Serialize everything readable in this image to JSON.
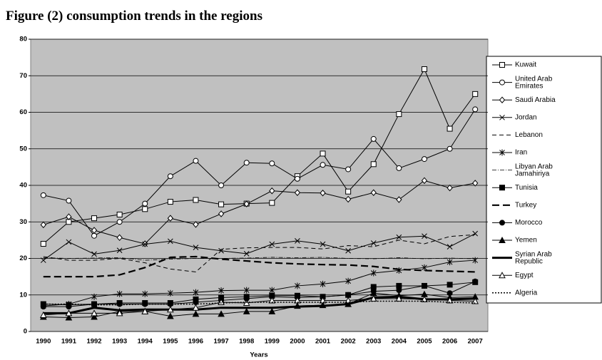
{
  "chart_data": {
    "type": "line",
    "title": "Figure (2) consumption trends in the regions",
    "xlabel": "Years",
    "categories": [
      "1990",
      "1991",
      "1992",
      "1993",
      "1994",
      "1995",
      "1996",
      "1997",
      "1998",
      "1999",
      "2000",
      "2001",
      "2002",
      "2003",
      "2004",
      "2005",
      "2006",
      "2007"
    ],
    "ylim": [
      0,
      80
    ],
    "yticks": [
      0,
      10,
      20,
      30,
      40,
      50,
      60,
      70,
      80
    ],
    "grid": true,
    "series": [
      {
        "name": "Kuwait",
        "color": "#000000",
        "marker": "square-open",
        "dash": "none",
        "width": 1,
        "values": [
          24,
          30,
          31,
          32,
          33.5,
          35.5,
          36,
          34.8,
          35,
          35.2,
          42.5,
          48.7,
          38.3,
          45.8,
          59.5,
          71.8,
          55.5,
          65
        ]
      },
      {
        "name": "United Arab Emirates",
        "color": "#000000",
        "marker": "circle-open",
        "dash": "none",
        "width": 1,
        "values": [
          37.3,
          35.8,
          26.2,
          30,
          35,
          42.5,
          46.7,
          40,
          46.2,
          46,
          41.8,
          45.6,
          44.4,
          52.7,
          44.7,
          47.2,
          50,
          60.8
        ]
      },
      {
        "name": "Saudi Arabia",
        "color": "#000000",
        "marker": "diamond-open",
        "dash": "none",
        "width": 1,
        "values": [
          29.2,
          31.4,
          27.7,
          25.7,
          24,
          31,
          29.3,
          32.2,
          34.9,
          38.5,
          38,
          37.9,
          36.2,
          38,
          36.1,
          41.3,
          39.3,
          40.6
        ]
      },
      {
        "name": "Jordan",
        "color": "#000000",
        "marker": "x",
        "dash": "none",
        "width": 1,
        "values": [
          19.5,
          24.5,
          21.2,
          22.2,
          23.9,
          24.7,
          23,
          22.1,
          21.3,
          23.9,
          24.8,
          23.9,
          22.1,
          24.2,
          25.8,
          26.1,
          23.2,
          26.8
        ]
      },
      {
        "name": "Lebanon",
        "color": "#000000",
        "marker": "none",
        "dash": "6,4",
        "width": 1,
        "values": [
          20.5,
          19.5,
          19.5,
          20,
          18.8,
          17.1,
          16.3,
          22.5,
          22.9,
          23,
          23,
          22.6,
          23.5,
          23.2,
          25,
          24,
          26,
          26.5
        ]
      },
      {
        "name": "Iran",
        "color": "#000000",
        "marker": "star",
        "dash": "none",
        "width": 1,
        "values": [
          7,
          7.5,
          9.5,
          10.3,
          10.3,
          10.5,
          10.7,
          11.2,
          11.3,
          11.3,
          12.5,
          13,
          13.8,
          16,
          16.7,
          17.5,
          19,
          19.5
        ]
      },
      {
        "name": "Libyan Arab Jamahiriya",
        "color": "#000000",
        "marker": "none",
        "dash": "6,2,1,2",
        "width": 0.8,
        "values": [
          20.2,
          20,
          20.1,
          20.2,
          19.5,
          19.8,
          20,
          20,
          20.1,
          20.3,
          20.2,
          20.3,
          20,
          19.9,
          20.2,
          19.9,
          20.1,
          19.9
        ]
      },
      {
        "name": "Tunisia",
        "color": "#000000",
        "marker": "square-filled",
        "dash": "none",
        "width": 1,
        "values": [
          7.5,
          7.3,
          7.5,
          7.8,
          7.8,
          7.8,
          8.8,
          9.3,
          9.5,
          9.8,
          9.8,
          9.5,
          10,
          12.2,
          12.5,
          12.5,
          12.8,
          13.5
        ]
      },
      {
        "name": "Turkey",
        "color": "#000000",
        "marker": "none",
        "dash": "10,5",
        "width": 2.2,
        "values": [
          15,
          15,
          15,
          15.5,
          17.5,
          20.3,
          20.5,
          19.8,
          19.3,
          18.8,
          18.5,
          18.3,
          18.2,
          17.8,
          17,
          16.7,
          16.5,
          16.3
        ]
      },
      {
        "name": "Morocco",
        "color": "#000000",
        "marker": "circle-filled",
        "dash": "none",
        "width": 1,
        "values": [
          6.8,
          6.8,
          7.5,
          7.5,
          7.5,
          7.5,
          8,
          8.5,
          9,
          9.5,
          9.3,
          9.5,
          10,
          11,
          11.3,
          12.5,
          10.5,
          13.7
        ]
      },
      {
        "name": "Yemen",
        "color": "#000000",
        "marker": "triangle-filled",
        "dash": "none",
        "width": 1,
        "values": [
          4,
          3.8,
          4,
          5.5,
          5.5,
          4.2,
          4.8,
          4.8,
          5.5,
          5.5,
          7,
          7.2,
          7.5,
          10.5,
          9.8,
          10.2,
          9.3,
          9.5
        ]
      },
      {
        "name": "Syrian Arab Republic",
        "color": "#000000",
        "marker": "none",
        "dash": "none",
        "width": 3,
        "values": [
          5,
          5,
          6.5,
          5.8,
          6,
          6,
          6,
          6.5,
          6.5,
          6.5,
          6.8,
          7,
          7.5,
          9.3,
          9.5,
          8.8,
          8.8,
          9
        ]
      },
      {
        "name": "Egypt",
        "color": "#000000",
        "marker": "triangle-open",
        "dash": "none",
        "width": 1,
        "values": [
          4.5,
          5,
          5,
          5,
          5.5,
          6,
          6.5,
          8,
          7.8,
          8.5,
          8.5,
          8.5,
          8.5,
          9,
          9,
          8.8,
          8.5,
          8.3
        ]
      },
      {
        "name": "Algeria",
        "color": "#000000",
        "marker": "none",
        "dash": "2,2",
        "width": 1.5,
        "values": [
          7.5,
          7.5,
          7.3,
          7.3,
          7.5,
          7.5,
          7.5,
          7.8,
          8,
          8,
          8,
          8,
          8,
          8.3,
          8.3,
          8.3,
          8,
          7.8
        ]
      }
    ]
  }
}
